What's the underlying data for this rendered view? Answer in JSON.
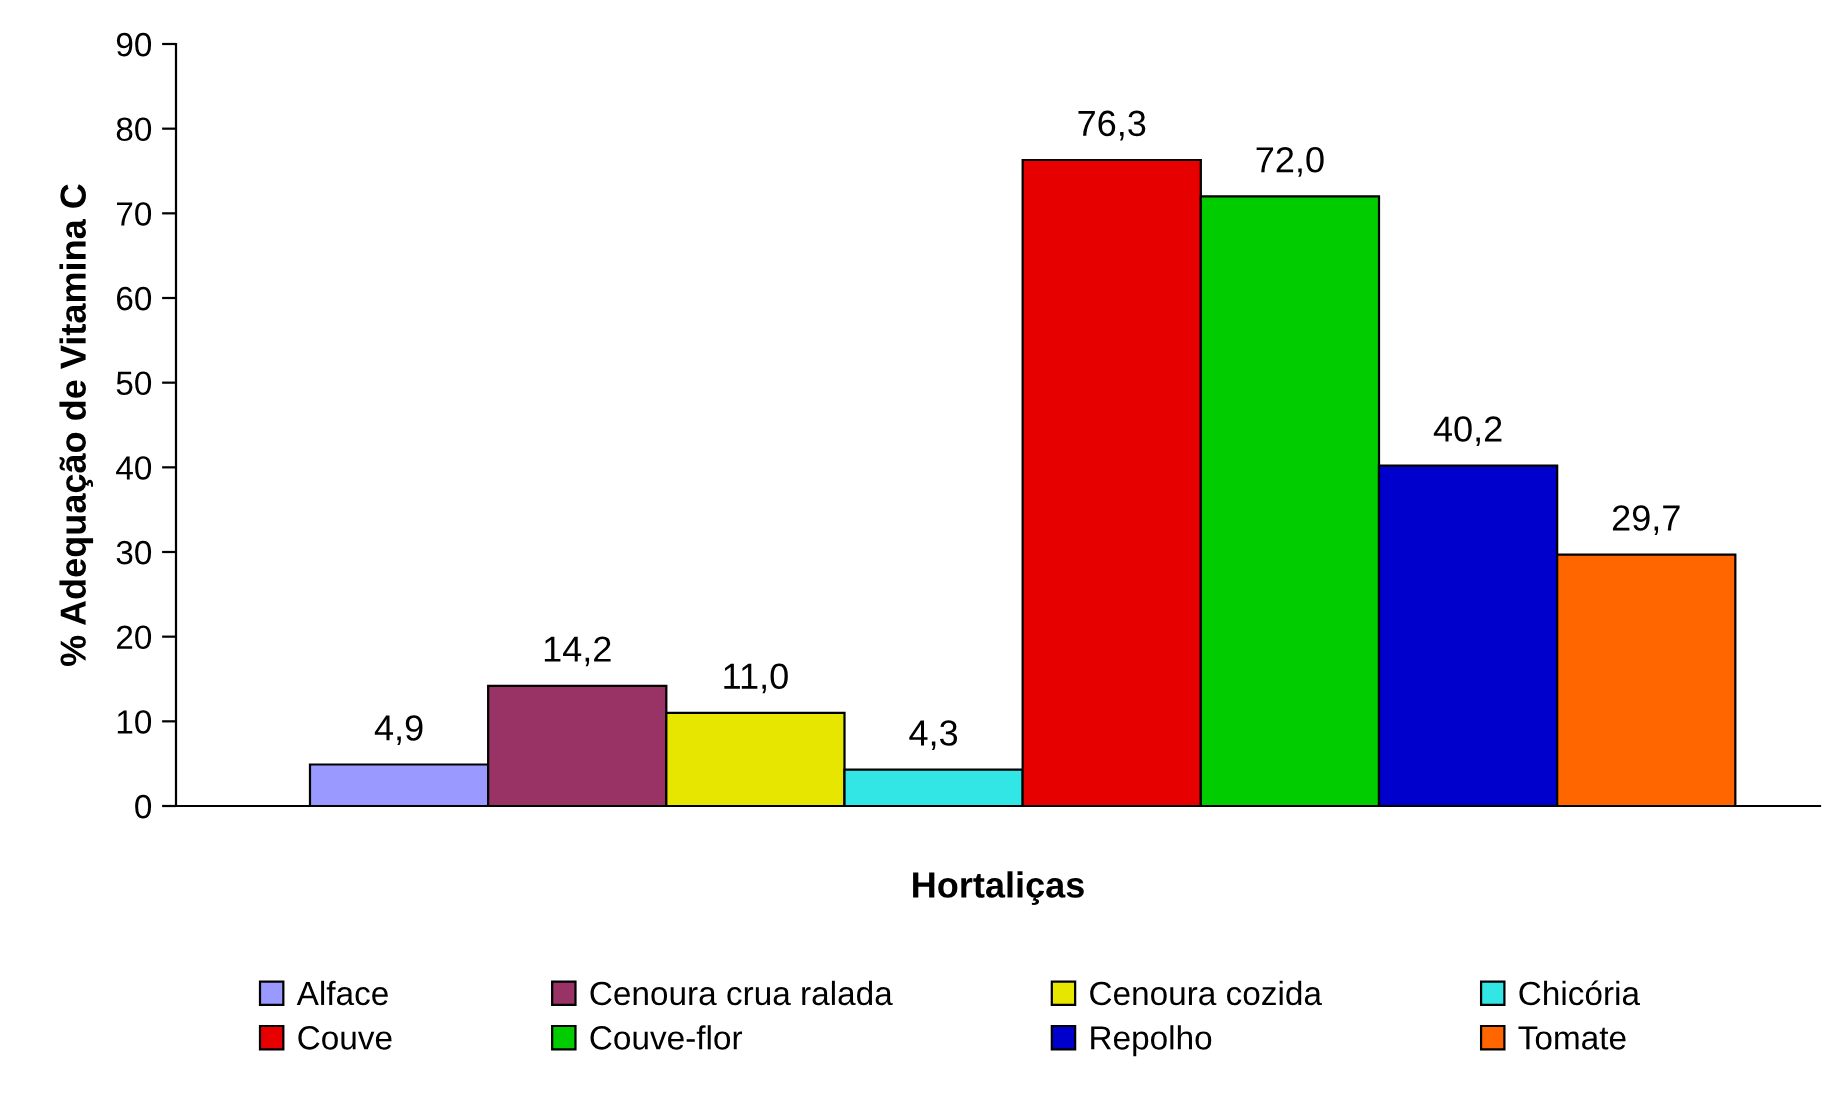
{
  "chart_data": {
    "type": "bar",
    "xlabel": "Hortaliças",
    "ylabel": "% Adequação de Vitamina C",
    "categories": [
      null
    ],
    "series": [
      {
        "name": "Alface",
        "color": "#9999ff",
        "values": [
          4.9
        ],
        "value_labels": [
          "4,9"
        ]
      },
      {
        "name": "Cenoura crua ralada",
        "color": "#993366",
        "values": [
          14.2
        ],
        "value_labels": [
          "14,2"
        ]
      },
      {
        "name": "Cenoura cozida",
        "color": "#e6e600",
        "values": [
          11.0
        ],
        "value_labels": [
          "11,0"
        ]
      },
      {
        "name": "Chicória",
        "color": "#33e6e6",
        "values": [
          4.3
        ],
        "value_labels": [
          "4,3"
        ]
      },
      {
        "name": "Couve",
        "color": "#e60000",
        "values": [
          76.3
        ],
        "value_labels": [
          "76,3"
        ]
      },
      {
        "name": "Couve-flor",
        "color": "#00cc00",
        "values": [
          72.0
        ],
        "value_labels": [
          "72,0"
        ]
      },
      {
        "name": "Repolho",
        "color": "#0000cc",
        "values": [
          40.2
        ],
        "value_labels": [
          "40,2"
        ]
      },
      {
        "name": "Tomate",
        "color": "#ff6600",
        "values": [
          29.7
        ],
        "value_labels": [
          "29,7"
        ]
      }
    ],
    "ylim": [
      0,
      90
    ],
    "yticks": [
      0,
      10,
      20,
      30,
      40,
      50,
      60,
      70,
      80,
      90
    ],
    "grid": false,
    "legend": "bottom"
  }
}
